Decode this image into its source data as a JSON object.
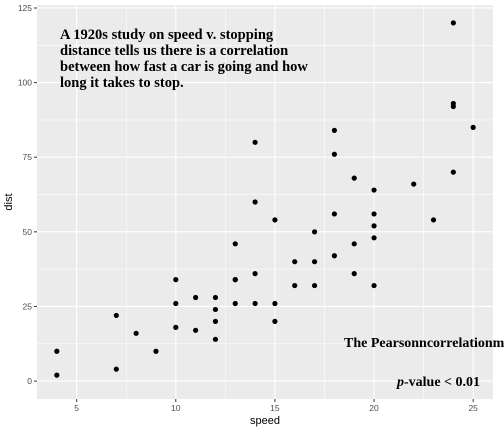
{
  "chart_data": {
    "type": "scatter",
    "xlabel": "speed",
    "ylabel": "dist",
    "xlim": [
      3.0,
      26.0
    ],
    "ylim": [
      -6.0,
      126.0
    ],
    "x_ticks": [
      5,
      10,
      15,
      20,
      25
    ],
    "y_ticks": [
      0,
      25,
      50,
      75,
      100,
      125
    ],
    "x_tick_labels": [
      "5",
      "10",
      "15",
      "20",
      "25"
    ],
    "y_tick_labels": [
      "0",
      "25",
      "50",
      "75",
      "100",
      "125"
    ],
    "grid": true,
    "panel_background": "#ebebeb",
    "grid_color": "#ffffff",
    "point_color": "#000000",
    "points": [
      {
        "x": 4,
        "y": 2
      },
      {
        "x": 4,
        "y": 10
      },
      {
        "x": 7,
        "y": 4
      },
      {
        "x": 7,
        "y": 22
      },
      {
        "x": 8,
        "y": 16
      },
      {
        "x": 9,
        "y": 10
      },
      {
        "x": 10,
        "y": 18
      },
      {
        "x": 10,
        "y": 26
      },
      {
        "x": 10,
        "y": 34
      },
      {
        "x": 11,
        "y": 17
      },
      {
        "x": 11,
        "y": 28
      },
      {
        "x": 12,
        "y": 14
      },
      {
        "x": 12,
        "y": 20
      },
      {
        "x": 12,
        "y": 24
      },
      {
        "x": 12,
        "y": 28
      },
      {
        "x": 13,
        "y": 26
      },
      {
        "x": 13,
        "y": 34
      },
      {
        "x": 13,
        "y": 34
      },
      {
        "x": 13,
        "y": 46
      },
      {
        "x": 14,
        "y": 26
      },
      {
        "x": 14,
        "y": 36
      },
      {
        "x": 14,
        "y": 60
      },
      {
        "x": 14,
        "y": 80
      },
      {
        "x": 15,
        "y": 20
      },
      {
        "x": 15,
        "y": 26
      },
      {
        "x": 15,
        "y": 54
      },
      {
        "x": 16,
        "y": 32
      },
      {
        "x": 16,
        "y": 40
      },
      {
        "x": 17,
        "y": 32
      },
      {
        "x": 17,
        "y": 40
      },
      {
        "x": 17,
        "y": 50
      },
      {
        "x": 18,
        "y": 42
      },
      {
        "x": 18,
        "y": 56
      },
      {
        "x": 18,
        "y": 76
      },
      {
        "x": 18,
        "y": 84
      },
      {
        "x": 19,
        "y": 36
      },
      {
        "x": 19,
        "y": 46
      },
      {
        "x": 19,
        "y": 68
      },
      {
        "x": 20,
        "y": 32
      },
      {
        "x": 20,
        "y": 48
      },
      {
        "x": 20,
        "y": 52
      },
      {
        "x": 20,
        "y": 56
      },
      {
        "x": 20,
        "y": 64
      },
      {
        "x": 22,
        "y": 66
      },
      {
        "x": 23,
        "y": 54
      },
      {
        "x": 24,
        "y": 70
      },
      {
        "x": 24,
        "y": 92
      },
      {
        "x": 24,
        "y": 93
      },
      {
        "x": 24,
        "y": 120
      },
      {
        "x": 25,
        "y": 85
      }
    ],
    "annotations": {
      "study_lines": [
        "A 1920s study on speed v. stopping",
        "distance tells us there is a correlation",
        "between how fast a car is going and how",
        "long it takes to stop."
      ],
      "correlation_text": "The Pearsonncorrelationm",
      "pvalue_p": "p",
      "pvalue_rest": "-value < 0.01"
    }
  }
}
